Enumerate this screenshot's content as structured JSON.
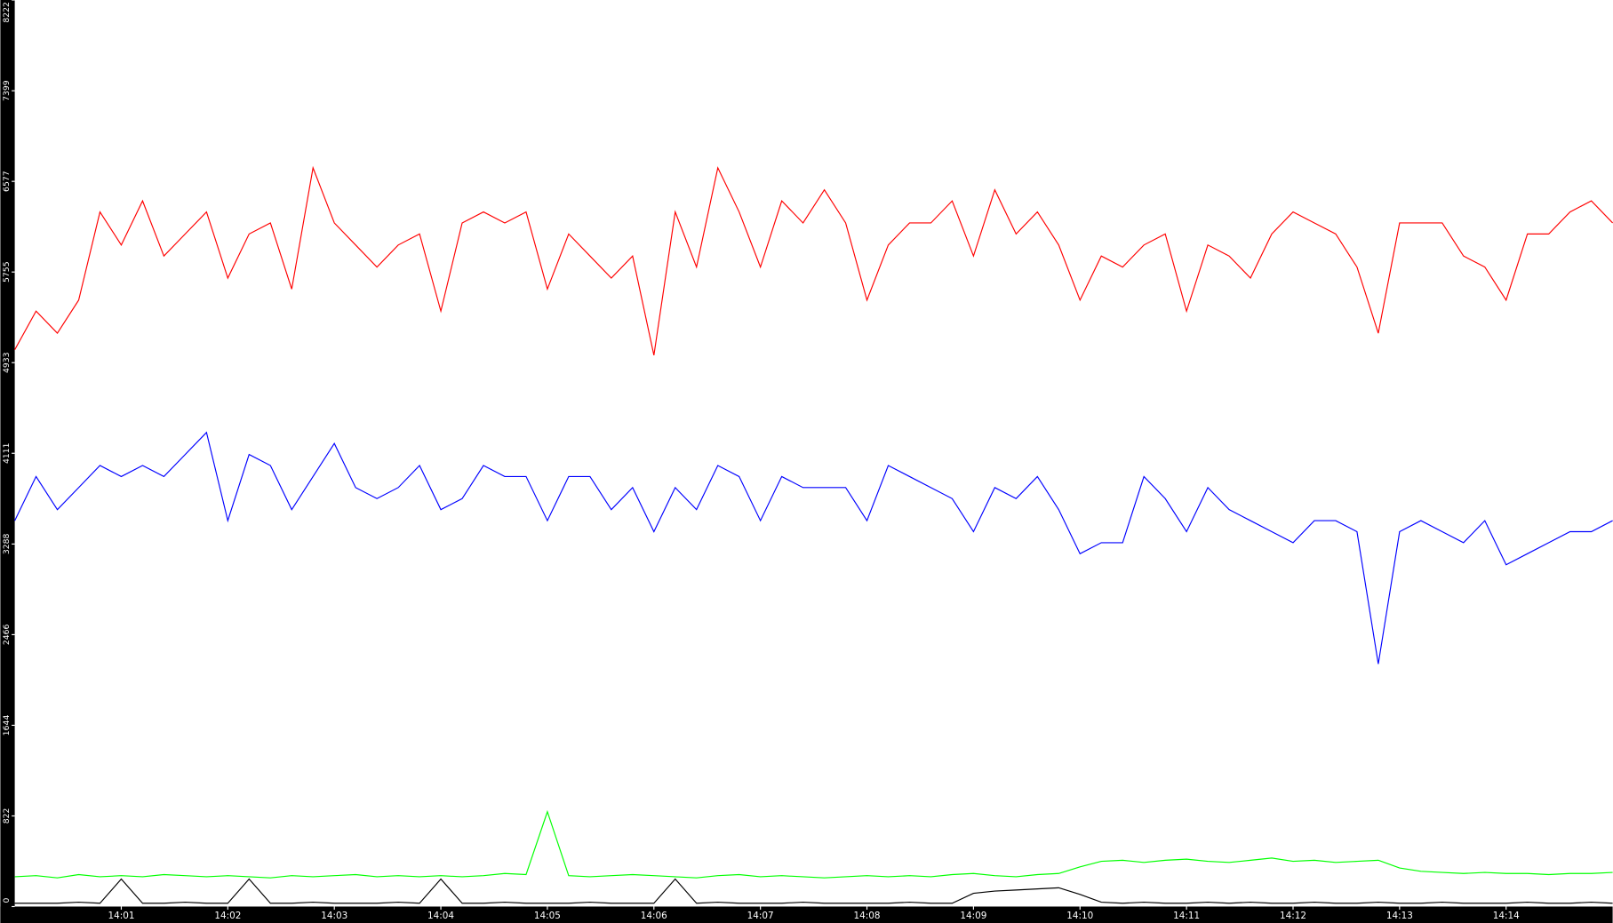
{
  "chart_data": {
    "type": "line",
    "xlim": [
      840,
      855
    ],
    "xticks": [
      {
        "value": 841,
        "label": "14:01"
      },
      {
        "value": 842,
        "label": "14:02"
      },
      {
        "value": 843,
        "label": "14:03"
      },
      {
        "value": 844,
        "label": "14:04"
      },
      {
        "value": 845,
        "label": "14:05"
      },
      {
        "value": 846,
        "label": "14:06"
      },
      {
        "value": 847,
        "label": "14:07"
      },
      {
        "value": 848,
        "label": "14:08"
      },
      {
        "value": 849,
        "label": "14:09"
      },
      {
        "value": 850,
        "label": "14:10"
      },
      {
        "value": 851,
        "label": "14:11"
      },
      {
        "value": 852,
        "label": "14:12"
      },
      {
        "value": 853,
        "label": "14:13"
      },
      {
        "value": 854,
        "label": "14:14"
      }
    ],
    "ylim": [
      0,
      8222
    ],
    "yticks": [
      0,
      822,
      1644,
      2466,
      3288,
      4111,
      4933,
      5755,
      6577,
      7399,
      8222
    ],
    "x": [
      840,
      840.2,
      840.4,
      840.6,
      840.8,
      841,
      841.2,
      841.4,
      841.6,
      841.8,
      842,
      842.2,
      842.4,
      842.6,
      842.8,
      843,
      843.2,
      843.4,
      843.6,
      843.8,
      844,
      844.2,
      844.4,
      844.6,
      844.8,
      845,
      845.2,
      845.4,
      845.6,
      845.8,
      846,
      846.2,
      846.4,
      846.6,
      846.8,
      847,
      847.2,
      847.4,
      847.6,
      847.8,
      848,
      848.2,
      848.4,
      848.6,
      848.8,
      849,
      849.2,
      849.4,
      849.6,
      849.8,
      850,
      850.2,
      850.4,
      850.6,
      850.8,
      851,
      851.2,
      851.4,
      851.6,
      851.8,
      852,
      852.2,
      852.4,
      852.6,
      852.8,
      853,
      853.2,
      853.4,
      853.6,
      853.8,
      854,
      854.2,
      854.4,
      854.6,
      854.8,
      855
    ],
    "series": [
      {
        "color": "#ff0000",
        "values": [
          5050,
          5400,
          5200,
          5500,
          6300,
          6000,
          6400,
          5900,
          6100,
          6300,
          5700,
          6100,
          6200,
          5600,
          6700,
          6200,
          6000,
          5800,
          6000,
          6100,
          5400,
          6200,
          6300,
          6200,
          6300,
          5600,
          6100,
          5900,
          5700,
          5900,
          5000,
          6300,
          5800,
          6700,
          6300,
          5800,
          6400,
          6200,
          6500,
          6200,
          5500,
          6000,
          6200,
          6200,
          6400,
          5900,
          6500,
          6100,
          6300,
          6000,
          5500,
          5900,
          5800,
          6000,
          6100,
          5400,
          6000,
          5900,
          5700,
          6100,
          6300,
          6200,
          6100,
          5800,
          5200,
          6200,
          6200,
          6200,
          5900,
          5800,
          5500,
          6100,
          6100,
          6300,
          6400,
          6200
        ]
      },
      {
        "color": "#0000ff",
        "values": [
          3500,
          3900,
          3600,
          3800,
          4000,
          3900,
          4000,
          3900,
          4100,
          4300,
          3500,
          4100,
          4000,
          3600,
          3900,
          4200,
          3800,
          3700,
          3800,
          4000,
          3600,
          3700,
          4000,
          3900,
          3900,
          3500,
          3900,
          3900,
          3600,
          3800,
          3400,
          3800,
          3600,
          4000,
          3900,
          3500,
          3900,
          3800,
          3800,
          3800,
          3500,
          4000,
          3900,
          3800,
          3700,
          3400,
          3800,
          3700,
          3900,
          3600,
          3200,
          3300,
          3300,
          3900,
          3700,
          3400,
          3800,
          3600,
          3500,
          3400,
          3300,
          3500,
          3500,
          3400,
          2200,
          3400,
          3500,
          3400,
          3300,
          3500,
          3100,
          3200,
          3300,
          3400,
          3400,
          3500
        ]
      },
      {
        "color": "#00ff00",
        "values": [
          270,
          280,
          260,
          290,
          270,
          280,
          270,
          290,
          280,
          270,
          280,
          270,
          260,
          280,
          270,
          280,
          290,
          270,
          280,
          270,
          280,
          270,
          280,
          300,
          290,
          860,
          280,
          270,
          280,
          290,
          280,
          270,
          260,
          280,
          290,
          270,
          280,
          270,
          260,
          270,
          280,
          270,
          280,
          270,
          290,
          300,
          280,
          270,
          290,
          300,
          360,
          410,
          420,
          400,
          420,
          430,
          410,
          400,
          420,
          440,
          410,
          420,
          400,
          410,
          420,
          350,
          320,
          310,
          300,
          310,
          300,
          300,
          290,
          300,
          300,
          310
        ]
      },
      {
        "color": "#000000",
        "values": [
          30,
          30,
          30,
          40,
          30,
          250,
          30,
          30,
          40,
          30,
          30,
          250,
          30,
          30,
          40,
          30,
          30,
          30,
          40,
          30,
          250,
          30,
          30,
          40,
          30,
          30,
          30,
          40,
          30,
          30,
          30,
          250,
          30,
          40,
          30,
          30,
          30,
          40,
          30,
          30,
          30,
          30,
          40,
          30,
          30,
          120,
          140,
          150,
          160,
          170,
          110,
          40,
          30,
          40,
          30,
          30,
          40,
          30,
          40,
          30,
          30,
          40,
          30,
          30,
          40,
          30,
          30,
          40,
          30,
          30,
          30,
          40,
          30,
          30,
          40,
          30
        ]
      }
    ]
  }
}
